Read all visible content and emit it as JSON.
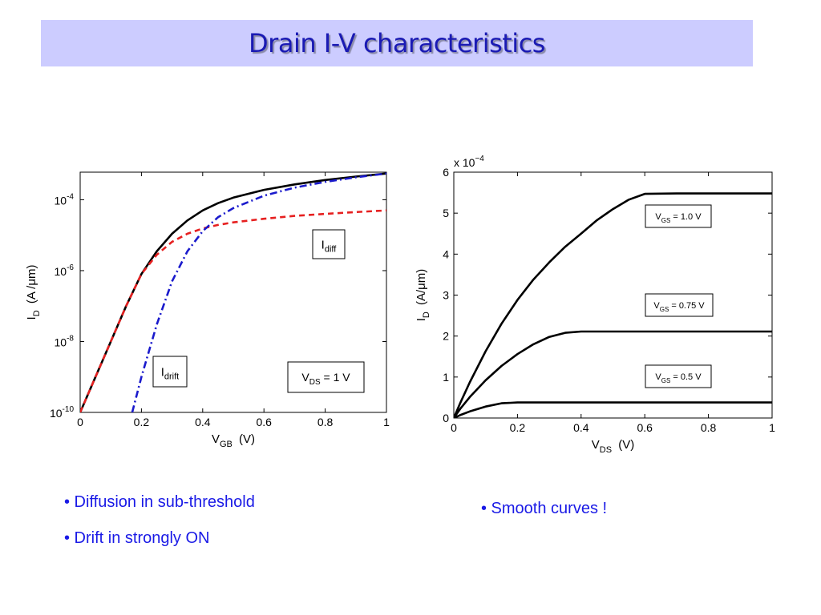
{
  "slide": {
    "title": "Drain I-V characteristics",
    "bullets_left": [
      "• Diffusion in sub-threshold",
      "• Drift in strongly ON"
    ],
    "bullets_right": [
      "• Smooth curves !"
    ]
  },
  "colors": {
    "title": "#1a1ab4",
    "title_bar": "#ccccff",
    "bullet_text": "#1a1ae6"
  },
  "chart_data": [
    {
      "type": "line",
      "title": "",
      "xlabel": "V",
      "xlabel_sub": "GB",
      "xlabel_unit": "(V)",
      "ylabel": "I",
      "ylabel_sub": "D",
      "ylabel_unit": "(A /μm)",
      "xlim": [
        0,
        1
      ],
      "ylim": [
        1e-10,
        0.0006
      ],
      "yscale": "log",
      "grid": false,
      "x_ticks": [
        0,
        0.2,
        0.4,
        0.6,
        0.8,
        1
      ],
      "x_tick_labels": [
        "0",
        "0.2",
        "0.4",
        "0.6",
        "0.8",
        "1"
      ],
      "y_ticks": [
        1e-10,
        1e-08,
        1e-06,
        0.0001
      ],
      "y_tick_labels": [
        {
          "base": "10",
          "exp": "-10"
        },
        {
          "base": "10",
          "exp": "-8"
        },
        {
          "base": "10",
          "exp": "-6"
        },
        {
          "base": "10",
          "exp": "-4"
        }
      ],
      "annotations": [
        {
          "text": "I",
          "sub": "diff"
        },
        {
          "text": "I",
          "sub": "drift"
        },
        {
          "text": "V",
          "sub": "DS",
          "rest": " = 1 V"
        }
      ],
      "series": [
        {
          "style": "solid",
          "color": "#000000",
          "x": [
            0,
            0.05,
            0.1,
            0.15,
            0.2,
            0.25,
            0.3,
            0.35,
            0.4,
            0.45,
            0.5,
            0.6,
            0.7,
            0.8,
            0.9,
            1.0
          ],
          "y": [
            1e-10,
            1e-09,
            1e-08,
            1e-07,
            8e-07,
            3.5e-06,
            1.1e-05,
            2.6e-05,
            5e-05,
            8e-05,
            0.000115,
            0.00019,
            0.00027,
            0.00036,
            0.00045,
            0.00055
          ]
        },
        {
          "style": "dashed",
          "color": "#e62020",
          "x": [
            0,
            0.05,
            0.1,
            0.15,
            0.2,
            0.25,
            0.3,
            0.35,
            0.4,
            0.45,
            0.5,
            0.6,
            0.7,
            0.8,
            0.9,
            1.0
          ],
          "y": [
            1e-10,
            1e-09,
            1e-08,
            1e-07,
            8e-07,
            2.8e-06,
            6.5e-06,
            1.1e-05,
            1.55e-05,
            1.95e-05,
            2.3e-05,
            2.9e-05,
            3.5e-05,
            4e-05,
            4.5e-05,
            5e-05
          ]
        },
        {
          "style": "dashdot",
          "color": "#1a1acc",
          "x": [
            0.17,
            0.2,
            0.25,
            0.3,
            0.35,
            0.4,
            0.45,
            0.5,
            0.6,
            0.7,
            0.8,
            0.9,
            1.0
          ],
          "y": [
            1e-10,
            1e-09,
            3e-08,
            5e-07,
            3.5e-06,
            1.3e-05,
            3.2e-05,
            5.8e-05,
            0.00013,
            0.00022,
            0.00032,
            0.00043,
            0.00055
          ]
        }
      ]
    },
    {
      "type": "line",
      "title": "",
      "xlabel": "V",
      "xlabel_sub": "DS",
      "xlabel_unit": "(V)",
      "ylabel": "I",
      "ylabel_sub": "D",
      "ylabel_unit": "(A/μm)",
      "xlim": [
        0,
        1
      ],
      "ylim": [
        0,
        6
      ],
      "y_multiplier": {
        "text": "x 10",
        "exp": "−4"
      },
      "grid": false,
      "x_ticks": [
        0,
        0.2,
        0.4,
        0.6,
        0.8,
        1
      ],
      "x_tick_labels": [
        "0",
        "0.2",
        "0.4",
        "0.6",
        "0.8",
        "1"
      ],
      "y_ticks": [
        0,
        1,
        2,
        3,
        4,
        5,
        6
      ],
      "y_tick_labels": [
        "0",
        "1",
        "2",
        "3",
        "4",
        "5",
        "6"
      ],
      "annotations": [
        {
          "text": "V",
          "sub": "GS",
          "rest": " = 1.0 V"
        },
        {
          "text": "V",
          "sub": "GS",
          "rest": " = 0.75 V"
        },
        {
          "text": "V",
          "sub": "GS",
          "rest": " = 0.5 V"
        }
      ],
      "series": [
        {
          "label": "V_GS = 1.0 V",
          "style": "solid",
          "color": "#000000",
          "x": [
            0,
            0.02,
            0.05,
            0.1,
            0.15,
            0.2,
            0.25,
            0.3,
            0.35,
            0.4,
            0.45,
            0.5,
            0.55,
            0.6,
            0.7,
            0.8,
            0.9,
            1.0
          ],
          "y": [
            0,
            0.36,
            0.87,
            1.63,
            2.3,
            2.88,
            3.38,
            3.8,
            4.18,
            4.5,
            4.83,
            5.1,
            5.33,
            5.47,
            5.48,
            5.48,
            5.48,
            5.48
          ]
        },
        {
          "label": "V_GS = 0.75 V",
          "style": "solid",
          "color": "#000000",
          "x": [
            0,
            0.02,
            0.05,
            0.1,
            0.15,
            0.2,
            0.25,
            0.3,
            0.35,
            0.4,
            0.5,
            0.6,
            0.7,
            0.8,
            0.9,
            1.0
          ],
          "y": [
            0,
            0.22,
            0.51,
            0.92,
            1.27,
            1.56,
            1.8,
            1.98,
            2.08,
            2.11,
            2.11,
            2.11,
            2.11,
            2.11,
            2.11,
            2.11
          ]
        },
        {
          "label": "V_GS = 0.5 V",
          "style": "solid",
          "color": "#000000",
          "x": [
            0,
            0.02,
            0.05,
            0.1,
            0.15,
            0.2,
            0.3,
            0.4,
            0.5,
            0.6,
            0.7,
            0.8,
            0.9,
            1.0
          ],
          "y": [
            0,
            0.07,
            0.16,
            0.28,
            0.36,
            0.38,
            0.38,
            0.38,
            0.38,
            0.38,
            0.38,
            0.38,
            0.38,
            0.38
          ]
        }
      ]
    }
  ]
}
